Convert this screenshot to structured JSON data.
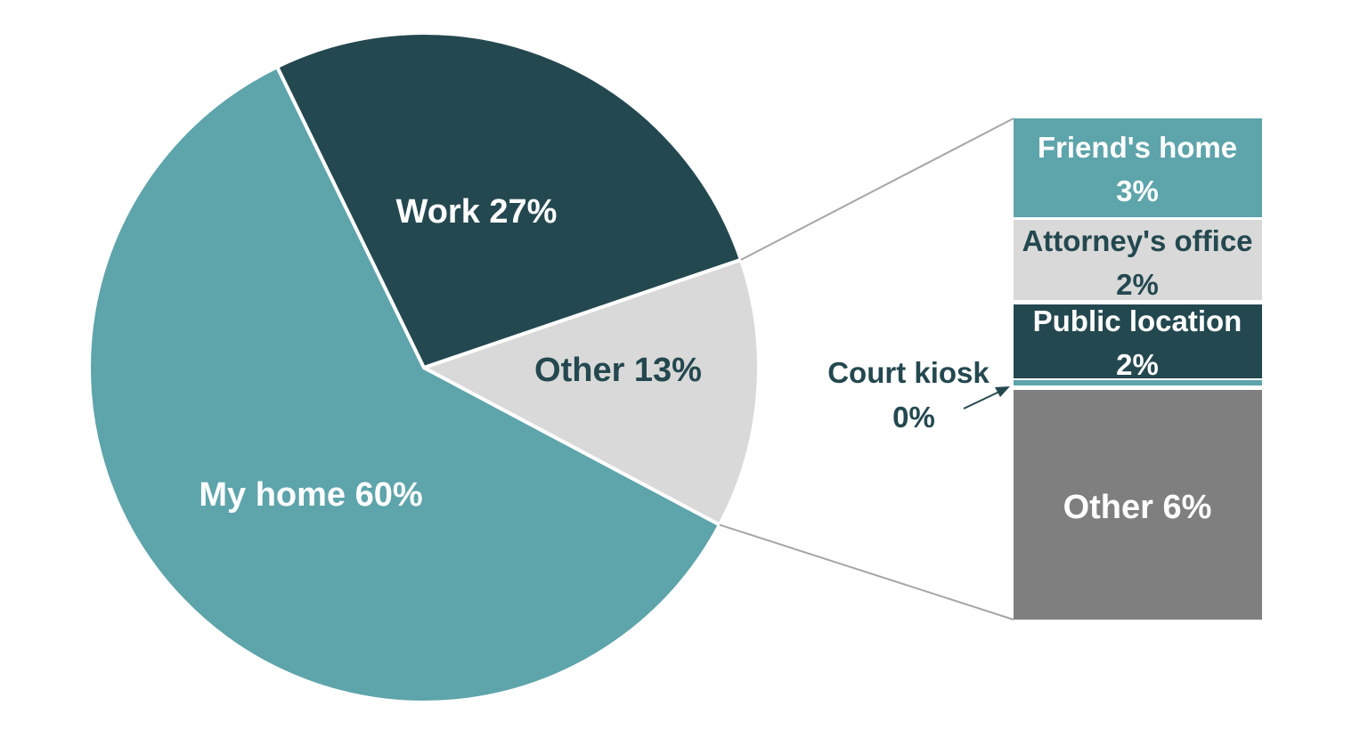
{
  "chart_data": {
    "type": "pie",
    "pie": {
      "slices": [
        {
          "label": "My home 60%",
          "value": 60,
          "color": "#5ea4ab",
          "text_color": "#ffffff"
        },
        {
          "label": "Work 27%",
          "value": 27,
          "color": "#24484f",
          "text_color": "#ffffff"
        },
        {
          "label": "Other 13%",
          "value": 13,
          "color": "#d9d9d9",
          "text_color": "#24484f"
        }
      ]
    },
    "breakdown": {
      "of_slice": "Other 13%",
      "segments": [
        {
          "label_line1": "Friend's home",
          "label_line2": "3%",
          "value": 3,
          "color": "#5ea4ab",
          "text_color": "#ffffff"
        },
        {
          "label_line1": "Attorney's office",
          "label_line2": "2%",
          "value": 2,
          "color": "#d9d9d9",
          "text_color": "#24484f"
        },
        {
          "label_line1": "Public location",
          "label_line2": "2%",
          "value": 2,
          "color": "#24484f",
          "text_color": "#ffffff"
        },
        {
          "label_line1": "Court kiosk",
          "label_line2": "0%",
          "value": 0,
          "color": "#5ea4ab",
          "text_color": "#24484f"
        },
        {
          "label_line1": "Other 6%",
          "label_line2": "",
          "value": 6,
          "color": "#7f7f7f",
          "text_color": "#ffffff"
        }
      ]
    }
  }
}
